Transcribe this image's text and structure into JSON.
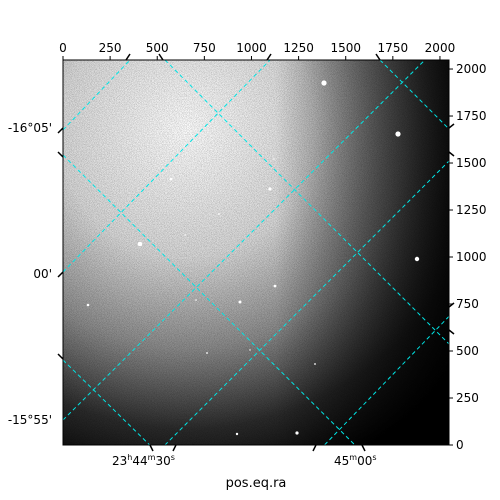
{
  "figure": {
    "xlabel": "pos.eq.ra",
    "colors": {
      "grid": "#00e5e5",
      "frame": "#000000",
      "background": "#ffffff"
    }
  },
  "pixel_axes": {
    "x_ticks": [
      "0",
      "250",
      "500",
      "750",
      "1000",
      "1250",
      "1500",
      "1750",
      "2000"
    ],
    "x_tick_values": [
      0,
      250,
      500,
      750,
      1000,
      1250,
      1500,
      1750,
      2000
    ],
    "y_ticks": [
      "0",
      "250",
      "500",
      "750",
      "1000",
      "1250",
      "1500",
      "1750",
      "2000"
    ],
    "y_tick_values": [
      0,
      250,
      500,
      750,
      1000,
      1250,
      1500,
      1750,
      2000
    ],
    "x_range": [
      0,
      2048
    ],
    "y_range": [
      0,
      2048
    ]
  },
  "world_axes": {
    "ra_tick_labels": [
      {
        "hms": "23",
        "h": "h",
        "mm": "44",
        "m": "m",
        "ss": "30",
        "s": "s"
      },
      {
        "hms": "45",
        "h": "m",
        "mm": "00",
        "m": "s",
        "ss": "",
        "s": ""
      }
    ],
    "dec_tick_labels": [
      "-16°05'",
      "00'",
      "-15°55'"
    ]
  },
  "image": {
    "description_colormap": "gray"
  }
}
